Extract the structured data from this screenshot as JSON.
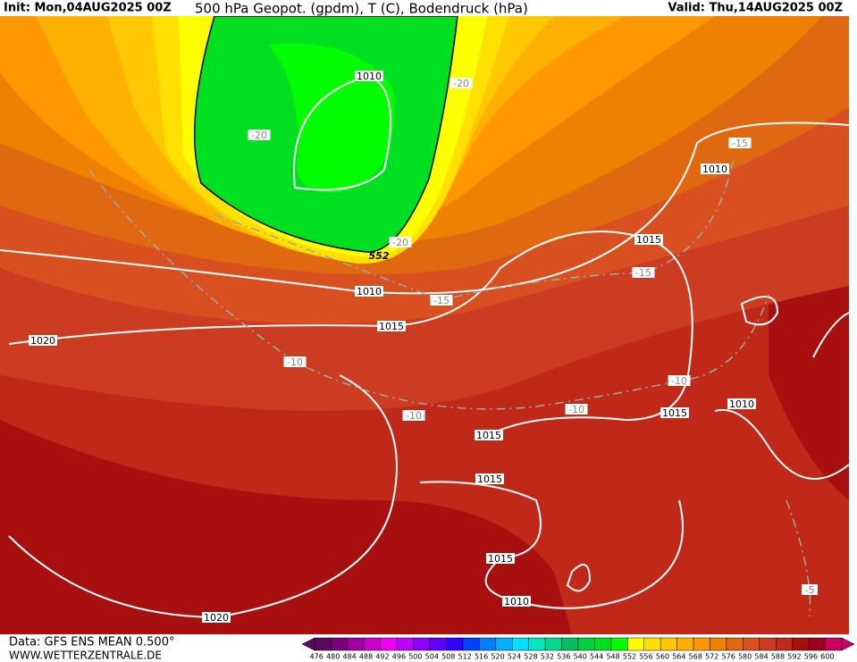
{
  "header": {
    "init": "Init: Mon,04AUG2025 00Z",
    "title": "500 hPa Geopot. (gpdm), T (C), Bodendruck (hPa)",
    "valid": "Valid: Thu,14AUG2025 00Z"
  },
  "map": {
    "labels": [
      "1010",
      "-20",
      "-20",
      "-15",
      "1010",
      "-20",
      "552",
      "1015",
      "-15",
      "1010",
      "-15",
      "1015",
      "1020",
      "-10",
      "-10",
      "1010",
      "-10",
      "-10",
      "1015",
      "1015",
      "1015",
      "1015",
      "-5",
      "1010",
      "1020"
    ]
  },
  "legend": {
    "values": [
      476,
      480,
      484,
      488,
      492,
      496,
      500,
      504,
      508,
      512,
      516,
      520,
      524,
      528,
      532,
      536,
      540,
      544,
      548,
      552,
      556,
      560,
      564,
      568,
      572,
      576,
      580,
      584,
      588,
      592,
      596,
      600
    ],
    "colors": [
      "#5a0a5a",
      "#7a007a",
      "#a000a0",
      "#c800c8",
      "#f000f0",
      "#c000ff",
      "#9000ff",
      "#6000ff",
      "#3000ff",
      "#0040ff",
      "#0080ff",
      "#00b0ff",
      "#00e0ff",
      "#00e8c0",
      "#00d890",
      "#00c060",
      "#00d040",
      "#00e020",
      "#00ff00",
      "#ffff00",
      "#ffe000",
      "#ffc800",
      "#ffb000",
      "#ff9800",
      "#f08000",
      "#e06810",
      "#d85020",
      "#cc3c20",
      "#c02818",
      "#a81010",
      "#a00020",
      "#cc0060"
    ]
  },
  "footer": {
    "data": "Data: GFS ENS MEAN 0.500°",
    "site": "WWW.WETTERZENTRALE.DE"
  }
}
